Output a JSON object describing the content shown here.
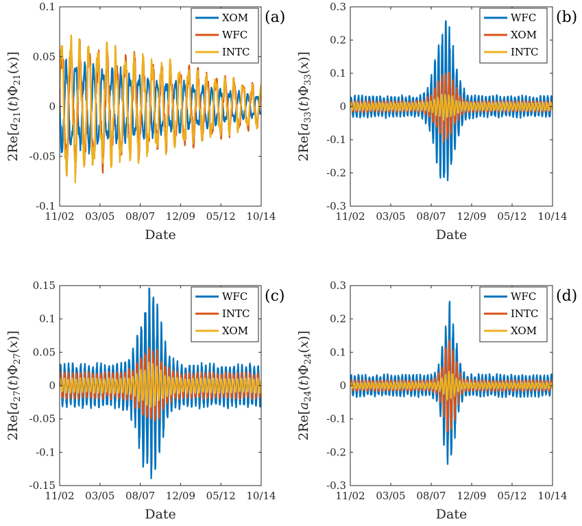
{
  "chart_data": [
    {
      "panel": "(a)",
      "type": "line",
      "ylabel_parts": [
        "2Re[",
        "a",
        "21",
        "(",
        "t",
        ")Φ",
        "21",
        "(",
        "x",
        ")]"
      ],
      "xlabel": "Date",
      "x_ticklabels": [
        "11/02",
        "03/05",
        "08/07",
        "12/09",
        "05/12",
        "10/14"
      ],
      "ylim": [
        -0.1,
        0.1
      ],
      "y_ticks": [
        -0.1,
        -0.05,
        0,
        0.05,
        0.1
      ],
      "y_ticklabels": [
        "-0.1",
        "-0.05",
        "0",
        "0.05",
        "0.1"
      ],
      "legend_position": "top-right",
      "series": [
        {
          "name": "XOM",
          "color": "#0072BD",
          "amp_start": 0.045,
          "amp_peak": 0.03,
          "amp_end": 0.01,
          "peak_center": 0.5,
          "peak_width": 0.4,
          "period_frac": 0.045,
          "phase": 3.14
        },
        {
          "name": "WFC",
          "color": "#D95319",
          "amp_start": 0.065,
          "amp_peak": 0.045,
          "amp_end": 0.02,
          "peak_center": 0.4,
          "peak_width": 0.4,
          "period_frac": 0.045,
          "phase": 0.0
        },
        {
          "name": "INTC",
          "color": "#EDB120",
          "amp_start": 0.07,
          "amp_peak": 0.05,
          "amp_end": 0.018,
          "peak_center": 0.4,
          "peak_width": 0.4,
          "period_frac": 0.045,
          "phase": 0.3
        }
      ]
    },
    {
      "panel": "(b)",
      "type": "line",
      "ylabel_parts": [
        "2Re[",
        "a",
        "33",
        "(",
        "t",
        ")Φ",
        "33",
        "(",
        "x",
        ")]"
      ],
      "xlabel": "Date",
      "x_ticklabels": [
        "11/02",
        "03/05",
        "08/07",
        "12/09",
        "05/12",
        "10/14"
      ],
      "ylim": [
        -0.3,
        0.3
      ],
      "y_ticks": [
        -0.3,
        -0.2,
        -0.1,
        0,
        0.1,
        0.2,
        0.3
      ],
      "y_ticklabels": [
        "-0.3",
        "-0.2",
        "-0.1",
        "0",
        "0.1",
        "0.2",
        "0.3"
      ],
      "legend_position": "top-right",
      "series": [
        {
          "name": "WFC",
          "color": "#0072BD",
          "amp_base": 0.03,
          "amp_peak": 0.24,
          "peak_center": 0.47,
          "peak_width": 0.06,
          "period_frac": 0.018,
          "phase": 0.0
        },
        {
          "name": "XOM",
          "color": "#D95319",
          "amp_base": 0.015,
          "amp_peak": 0.1,
          "peak_center": 0.47,
          "peak_width": 0.06,
          "period_frac": 0.018,
          "phase": 0.4
        },
        {
          "name": "INTC",
          "color": "#EDB120",
          "amp_base": 0.01,
          "amp_peak": 0.035,
          "peak_center": 0.47,
          "peak_width": 0.06,
          "period_frac": 0.018,
          "phase": 0.8
        }
      ]
    },
    {
      "panel": "(c)",
      "type": "line",
      "ylabel_parts": [
        "2Re[",
        "a",
        "27",
        "(",
        "t",
        ")Φ",
        "27",
        "(",
        "x",
        ")]"
      ],
      "xlabel": "Date",
      "x_ticklabels": [
        "11/02",
        "03/05",
        "08/07",
        "12/09",
        "05/12",
        "10/14"
      ],
      "ylim": [
        -0.15,
        0.15
      ],
      "y_ticks": [
        -0.15,
        -0.1,
        -0.05,
        0,
        0.05,
        0.1,
        0.15
      ],
      "y_ticklabels": [
        "-0.15",
        "-0.1",
        "-0.05",
        "0",
        "0.05",
        "0.1",
        "0.15"
      ],
      "legend_position": "top-right",
      "series": [
        {
          "name": "WFC",
          "color": "#0072BD",
          "amp_base": 0.03,
          "amp_peak": 0.13,
          "peak_center": 0.45,
          "peak_width": 0.07,
          "period_frac": 0.02,
          "phase": 0.0
        },
        {
          "name": "INTC",
          "color": "#D95319",
          "amp_base": 0.018,
          "amp_peak": 0.055,
          "peak_center": 0.45,
          "peak_width": 0.07,
          "period_frac": 0.02,
          "phase": 0.4
        },
        {
          "name": "XOM",
          "color": "#EDB120",
          "amp_base": 0.01,
          "amp_peak": 0.03,
          "peak_center": 0.45,
          "peak_width": 0.07,
          "period_frac": 0.02,
          "phase": 0.8
        }
      ]
    },
    {
      "panel": "(d)",
      "type": "line",
      "ylabel_parts": [
        "2Re[",
        "a",
        "24",
        "(",
        "t",
        ")Φ",
        "24",
        "(",
        "x",
        ")]"
      ],
      "xlabel": "Date",
      "x_ticklabels": [
        "11/02",
        "03/05",
        "08/07",
        "12/09",
        "05/12",
        "10/14"
      ],
      "ylim": [
        -0.3,
        0.3
      ],
      "y_ticks": [
        -0.3,
        -0.2,
        -0.1,
        0,
        0.1,
        0.2,
        0.3
      ],
      "y_ticklabels": [
        "-0.3",
        "-0.2",
        "-0.1",
        "0",
        "0.1",
        "0.2",
        "0.3"
      ],
      "legend_position": "top-right",
      "series": [
        {
          "name": "WFC",
          "color": "#0072BD",
          "amp_base": 0.03,
          "amp_peak": 0.23,
          "peak_center": 0.49,
          "peak_width": 0.04,
          "period_frac": 0.018,
          "phase": 0.0
        },
        {
          "name": "INTC",
          "color": "#D95319",
          "amp_base": 0.015,
          "amp_peak": 0.13,
          "peak_center": 0.49,
          "peak_width": 0.04,
          "period_frac": 0.018,
          "phase": 0.4
        },
        {
          "name": "XOM",
          "color": "#EDB120",
          "amp_base": 0.008,
          "amp_peak": 0.04,
          "peak_center": 0.49,
          "peak_width": 0.04,
          "period_frac": 0.018,
          "phase": 0.8
        }
      ]
    }
  ]
}
